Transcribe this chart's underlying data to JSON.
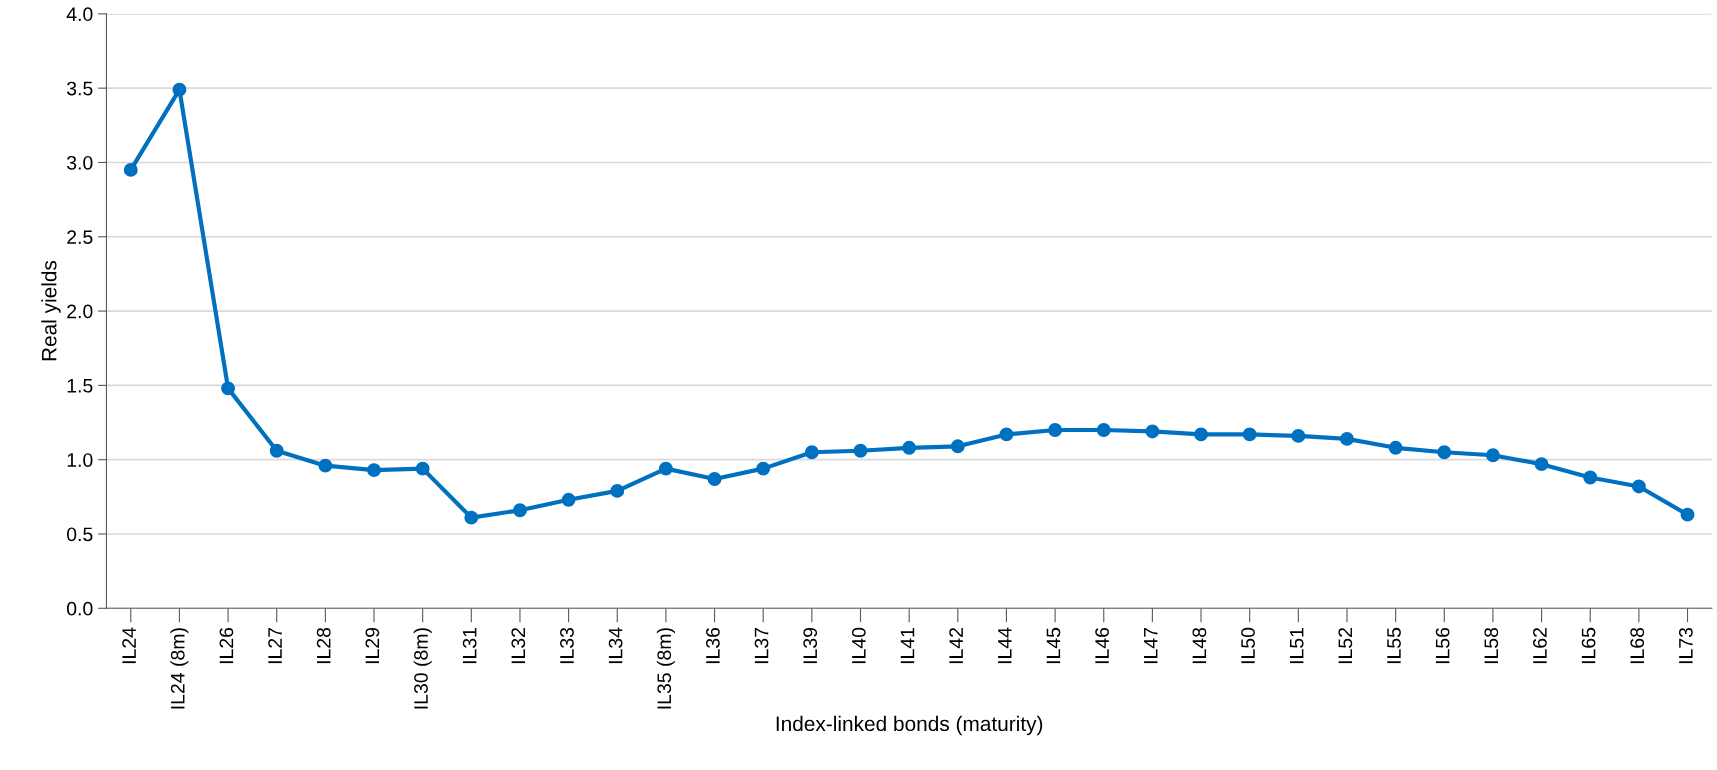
{
  "chart_data": {
    "type": "line",
    "xlabel": "Index-linked bonds (maturity)",
    "ylabel": "Real yields",
    "categories": [
      "IL24",
      "IL24 (8m)",
      "IL26",
      "IL27",
      "IL28",
      "IL29",
      "IL30 (8m)",
      "IL31",
      "IL32",
      "IL33",
      "IL34",
      "IL35 (8m)",
      "IL36",
      "IL37",
      "IL39",
      "IL40",
      "IL41",
      "IL42",
      "IL44",
      "IL45",
      "IL46",
      "IL47",
      "IL48",
      "IL50",
      "IL51",
      "IL52",
      "IL55",
      "IL56",
      "IL58",
      "IL62",
      "IL65",
      "IL68",
      "IL73"
    ],
    "series": [
      {
        "color": "#0070c0",
        "values": [
          2.95,
          3.49,
          1.48,
          1.06,
          0.96,
          0.93,
          0.94,
          0.61,
          0.66,
          0.73,
          0.79,
          0.94,
          0.87,
          0.94,
          1.05,
          1.06,
          1.08,
          1.09,
          1.17,
          1.2,
          1.2,
          1.19,
          1.17,
          1.17,
          1.16,
          1.14,
          1.08,
          1.05,
          1.03,
          0.97,
          0.88,
          0.82,
          0.63
        ]
      }
    ],
    "ylim": [
      0,
      4
    ],
    "yticks": [
      {
        "value": 0,
        "label": "0.0"
      },
      {
        "value": 0.5,
        "label": "0.5"
      },
      {
        "value": 1,
        "label": "1.0"
      },
      {
        "value": 1.5,
        "label": "1.5"
      },
      {
        "value": 2,
        "label": "2.0"
      },
      {
        "value": 2.5,
        "label": "2.5"
      },
      {
        "value": 3,
        "label": "3.0"
      },
      {
        "value": 3.5,
        "label": "3.5"
      },
      {
        "value": 4,
        "label": "4.0"
      }
    ],
    "grid": "y",
    "marker": "circle",
    "line_style": "solid"
  }
}
